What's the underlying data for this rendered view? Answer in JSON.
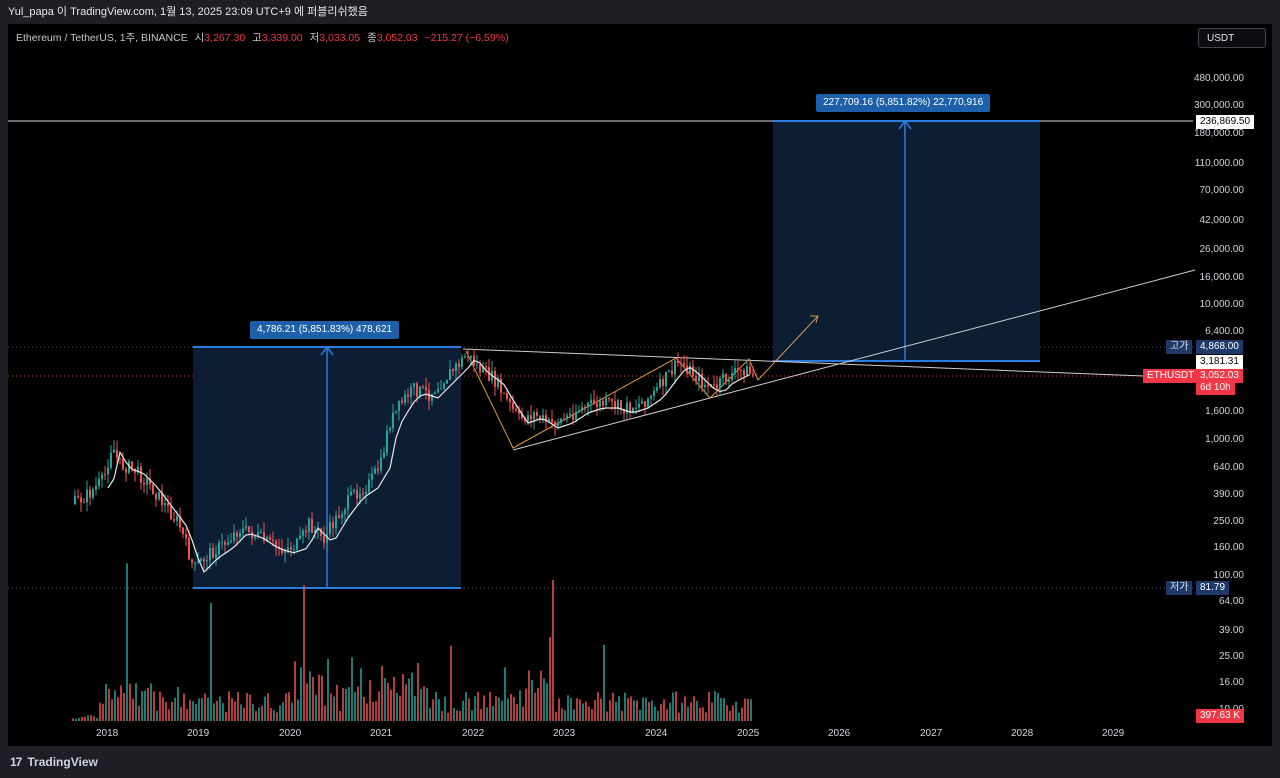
{
  "header": {
    "caption": "Yul_papa 이 TradingView.com, 1월 13, 2025 23:09 UTC+9 에 퍼블리쉬했음"
  },
  "symbol": {
    "title": "Ethereum / TetherUS, 1주, BINANCE",
    "open_label": "시",
    "open": "3,267.30",
    "high_label": "고",
    "high": "3,339.00",
    "low_label": "저",
    "low": "3,033.05",
    "close_label": "종",
    "close": "3,052.03",
    "change": "−215.27 (−6.59%)"
  },
  "currency_button": "USDT",
  "price_axis": [
    "480,000.00",
    "300,000.00",
    "180,000.00",
    "110,000.00",
    "70,000.00",
    "42,000.00",
    "26,000.00",
    "16,000.00",
    "10,000.00",
    "6,400.00",
    "1,600.00",
    "1,000.00",
    "640.00",
    "390.00",
    "250.00",
    "160.00",
    "100.00",
    "64.00",
    "39.00",
    "25.00",
    "16.00",
    "10.00"
  ],
  "time_axis": [
    "2018",
    "2019",
    "2020",
    "2021",
    "2022",
    "2023",
    "2024",
    "2025",
    "2026",
    "2027",
    "2028",
    "2029"
  ],
  "tags": {
    "target_price": "236,869.50",
    "high_label": "고가",
    "high_value": "4,868.00",
    "crosshair_price": "3,181.31",
    "symbol_tag": "ETHUSDT",
    "last_price": "3,052.03",
    "countdown": "6d 10h",
    "low_label": "저가",
    "low_value": "81.79",
    "volume": "397.63 K"
  },
  "measurements": {
    "left": "4,786.21 (5,851.83%) 478,621",
    "right": "227,709.16 (5,851.82%) 22,770,916"
  },
  "footer": {
    "brand": "TradingView"
  },
  "colors": {
    "accent": "#2962ff",
    "up": "#26a69a",
    "down": "#ef5350",
    "measure_fill": "#0d1d33",
    "measure_line": "#2a7de1"
  }
}
